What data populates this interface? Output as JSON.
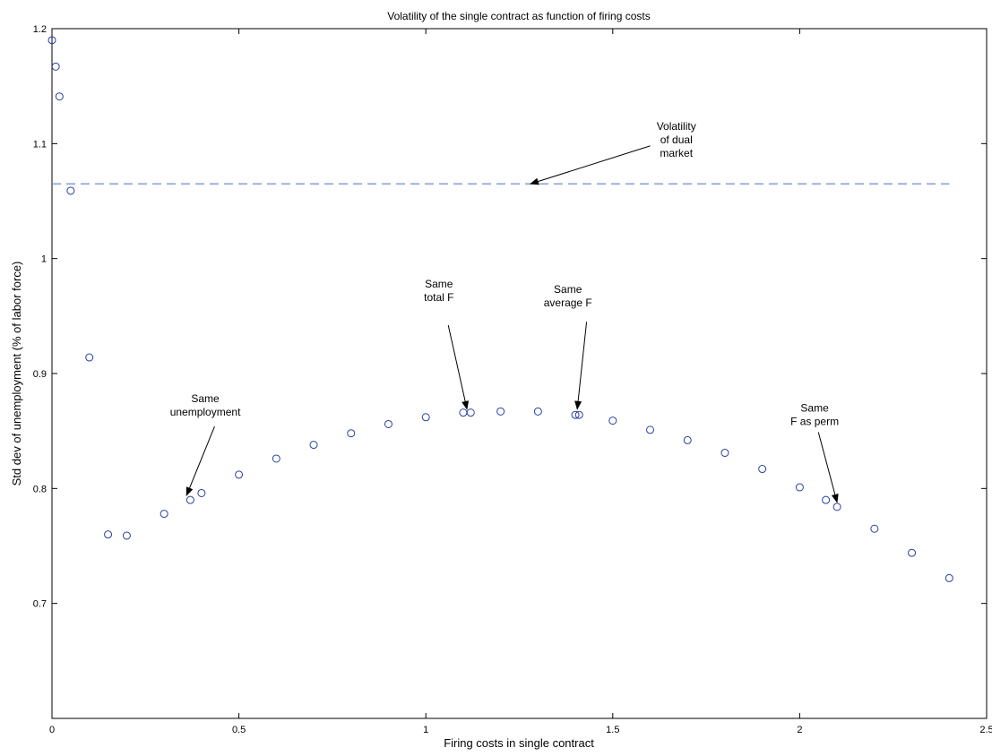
{
  "chart_data": {
    "type": "scatter",
    "title": "Volatility of the single contract as function of firing costs",
    "xlabel": "Firing costs in single contract",
    "ylabel": "Std dev of unemployment (% of labor force)",
    "xlim": [
      0,
      2.5
    ],
    "ylim": [
      0.6,
      1.2
    ],
    "xticks": [
      0,
      0.5,
      1,
      1.5,
      2,
      2.5
    ],
    "xtick_labels": [
      "0",
      "0.5",
      "1",
      "1.5",
      "2",
      "2.5"
    ],
    "yticks": [
      0.7,
      0.8,
      0.9,
      1,
      1.1,
      1.2
    ],
    "ytick_labels": [
      "0.7",
      "0.8",
      "0.9",
      "1",
      "1.1",
      "1.2"
    ],
    "grid": false,
    "series": [
      {
        "marker": "circle",
        "color": "#2a3fa0",
        "x": [
          0,
          0.01,
          0.02,
          0.05,
          0.1,
          0.15,
          0.2,
          0.3,
          0.37,
          0.4,
          0.5,
          0.6,
          0.7,
          0.8,
          0.9,
          1.0,
          1.1,
          1.12,
          1.2,
          1.3,
          1.4,
          1.41,
          1.5,
          1.6,
          1.7,
          1.8,
          1.9,
          2.0,
          2.07,
          2.1,
          2.2,
          2.3,
          2.4
        ],
        "y": [
          1.19,
          1.167,
          1.141,
          1.059,
          0.914,
          0.76,
          0.759,
          0.778,
          0.79,
          0.796,
          0.812,
          0.826,
          0.838,
          0.848,
          0.856,
          0.862,
          0.866,
          0.866,
          0.867,
          0.867,
          0.864,
          0.864,
          0.859,
          0.851,
          0.842,
          0.831,
          0.817,
          0.801,
          0.79,
          0.784,
          0.765,
          0.744,
          0.722
        ]
      }
    ],
    "reference_lines": [
      {
        "type": "horizontal",
        "y": 1.065,
        "x_range": [
          0,
          2.4
        ],
        "style": "dashed",
        "color": "#6a8fd0"
      }
    ],
    "annotations": [
      {
        "lines": [
          "Volatility",
          "of dual",
          "market"
        ],
        "text_x": 1.67,
        "text_y_top": 1.112,
        "arrow_from": [
          1.6,
          1.098
        ],
        "arrow_to": [
          1.28,
          1.065
        ]
      },
      {
        "lines": [
          "Same",
          "unemployment"
        ],
        "text_x": 0.41,
        "text_y_top": 0.875,
        "arrow_from": [
          0.435,
          0.854
        ],
        "arrow_to": [
          0.36,
          0.794
        ]
      },
      {
        "lines": [
          "Same",
          "total F"
        ],
        "text_x": 1.035,
        "text_y_top": 0.975,
        "arrow_from": [
          1.06,
          0.942
        ],
        "arrow_to": [
          1.11,
          0.869
        ]
      },
      {
        "lines": [
          "Same",
          "average F"
        ],
        "text_x": 1.38,
        "text_y_top": 0.97,
        "arrow_from": [
          1.43,
          0.945
        ],
        "arrow_to": [
          1.405,
          0.869
        ]
      },
      {
        "lines": [
          "Same",
          "F as perm"
        ],
        "text_x": 2.04,
        "text_y_top": 0.867,
        "arrow_from": [
          2.05,
          0.849
        ],
        "arrow_to": [
          2.1,
          0.788
        ]
      }
    ]
  }
}
